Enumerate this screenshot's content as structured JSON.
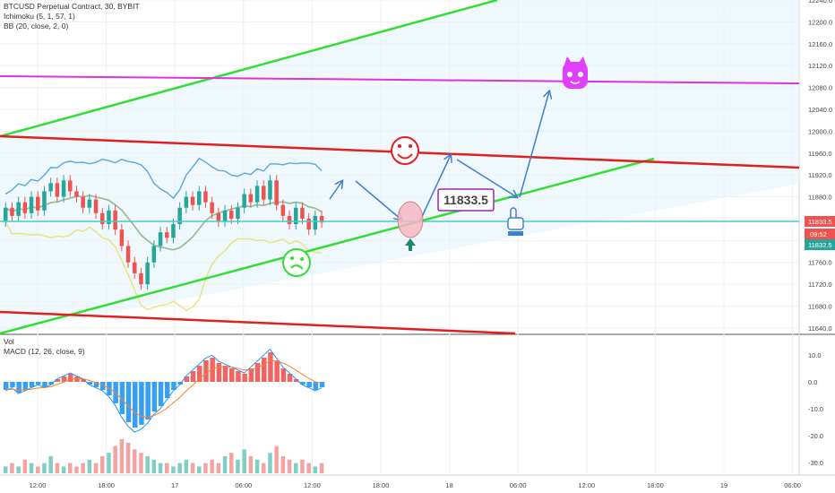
{
  "header": {
    "symbol_line": "BTCUSD Perpetual Contract, 30, BYBIT",
    "ichimoku": "Ichimoku (5, 1, 57, 1)",
    "bb": "BB (20, close, 2, 0)",
    "vol": "Vol",
    "macd": "MACD (12, 26, close, 9)"
  },
  "annotation": {
    "price_label": "11833.5"
  },
  "price_axis": {
    "ticks": [
      "12240.0",
      "12200.0",
      "12160.0",
      "12120.0",
      "12080.0",
      "12040.0",
      "12000.0",
      "11960.0",
      "11920.0",
      "11880.0",
      "11840.0",
      "11800.0",
      "11760.0",
      "11720.0",
      "11680.0",
      "11640.0"
    ],
    "current_price": "11833.5",
    "countdown": "09:52",
    "ref_price": "11832.5"
  },
  "macd_axis": {
    "ticks": [
      "10.0",
      "0.0",
      "-10.0",
      "-20.0",
      "-30.0"
    ]
  },
  "time_axis": {
    "ticks": [
      "12:00",
      "18:00",
      "17",
      "06:00",
      "12:00",
      "18:00",
      "18",
      "06:00",
      "12:00",
      "18:00",
      "19",
      "06:00"
    ]
  },
  "colors": {
    "green_line": "#33dd33",
    "red_line": "#e02020",
    "magenta_line": "#dd33dd",
    "cyan_line": "#4fc8c8",
    "bb_band": "#5aa7e0",
    "arrow": "#3f7fd0",
    "bull": "#26a69a",
    "bear": "#ef5350",
    "hist_up": "#ef5350",
    "hist_down": "#2196f3",
    "price_tag_red": "#ef5350",
    "price_tag_green": "#26a69a"
  },
  "chart_data": {
    "type": "line",
    "title": "BTCUSD Perpetual Contract, 30, BYBIT",
    "ylim": [
      11630,
      12240
    ],
    "macd_ylim": [
      -34,
      16
    ],
    "grid": true,
    "candles": [
      {
        "o": 11835,
        "c": 11860
      },
      {
        "o": 11860,
        "c": 11845
      },
      {
        "o": 11845,
        "c": 11870
      },
      {
        "o": 11870,
        "c": 11850
      },
      {
        "o": 11850,
        "c": 11880
      },
      {
        "o": 11880,
        "c": 11855
      },
      {
        "o": 11855,
        "c": 11890
      },
      {
        "o": 11890,
        "c": 11905
      },
      {
        "o": 11905,
        "c": 11880
      },
      {
        "o": 11880,
        "c": 11910
      },
      {
        "o": 11910,
        "c": 11890
      },
      {
        "o": 11890,
        "c": 11880
      },
      {
        "o": 11880,
        "c": 11860
      },
      {
        "o": 11860,
        "c": 11875
      },
      {
        "o": 11875,
        "c": 11850
      },
      {
        "o": 11850,
        "c": 11830
      },
      {
        "o": 11830,
        "c": 11855
      },
      {
        "o": 11855,
        "c": 11820
      },
      {
        "o": 11820,
        "c": 11790
      },
      {
        "o": 11790,
        "c": 11760
      },
      {
        "o": 11760,
        "c": 11740
      },
      {
        "o": 11740,
        "c": 11720
      },
      {
        "o": 11720,
        "c": 11760
      },
      {
        "o": 11760,
        "c": 11790
      },
      {
        "o": 11790,
        "c": 11815
      },
      {
        "o": 11815,
        "c": 11805
      },
      {
        "o": 11805,
        "c": 11830
      },
      {
        "o": 11830,
        "c": 11860
      },
      {
        "o": 11860,
        "c": 11880
      },
      {
        "o": 11880,
        "c": 11865
      },
      {
        "o": 11865,
        "c": 11890
      },
      {
        "o": 11890,
        "c": 11870
      },
      {
        "o": 11870,
        "c": 11850
      },
      {
        "o": 11850,
        "c": 11835
      },
      {
        "o": 11835,
        "c": 11855
      },
      {
        "o": 11855,
        "c": 11840
      },
      {
        "o": 11840,
        "c": 11860
      },
      {
        "o": 11860,
        "c": 11885
      },
      {
        "o": 11885,
        "c": 11870
      },
      {
        "o": 11870,
        "c": 11900
      },
      {
        "o": 11900,
        "c": 11875
      },
      {
        "o": 11875,
        "c": 11910
      },
      {
        "o": 11910,
        "c": 11865
      },
      {
        "o": 11865,
        "c": 11845
      },
      {
        "o": 11845,
        "c": 11830
      },
      {
        "o": 11830,
        "c": 11860
      },
      {
        "o": 11860,
        "c": 11840
      },
      {
        "o": 11840,
        "c": 11820
      },
      {
        "o": 11820,
        "c": 11845
      },
      {
        "o": 11845,
        "c": 11833
      }
    ],
    "macd_hist": [
      -3,
      -2,
      -4,
      -3,
      -2,
      -1,
      -2,
      -1,
      1,
      2,
      3,
      2,
      1,
      -1,
      -2,
      -3,
      -5,
      -8,
      -12,
      -15,
      -17,
      -16,
      -14,
      -11,
      -9,
      -6,
      -3,
      -1,
      2,
      4,
      6,
      8,
      9,
      7,
      6,
      5,
      4,
      3,
      5,
      7,
      9,
      11,
      8,
      5,
      3,
      1,
      -1,
      -2,
      -3,
      -2
    ],
    "volume": [
      2,
      3,
      2,
      4,
      3,
      2,
      3,
      5,
      3,
      2,
      3,
      2,
      3,
      4,
      3,
      5,
      6,
      8,
      10,
      9,
      7,
      6,
      5,
      4,
      3,
      3,
      2,
      3,
      4,
      3,
      2,
      3,
      4,
      3,
      5,
      6,
      4,
      7,
      5,
      4,
      3,
      6,
      8,
      5,
      4,
      3,
      4,
      3,
      2,
      3
    ]
  }
}
